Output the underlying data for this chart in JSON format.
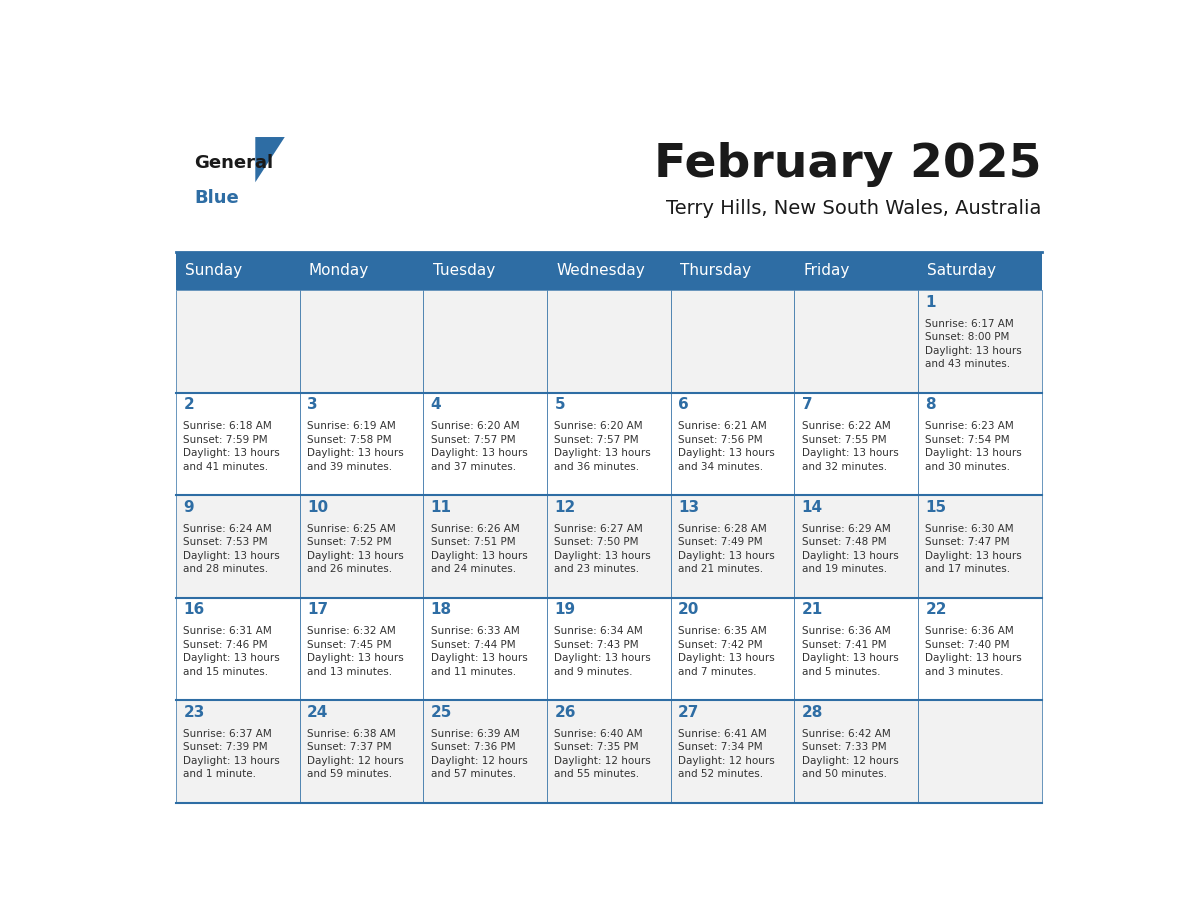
{
  "title": "February 2025",
  "subtitle": "Terry Hills, New South Wales, Australia",
  "header_bg": "#2E6DA4",
  "header_text": "#FFFFFF",
  "cell_bg_light": "#F2F2F2",
  "cell_bg_white": "#FFFFFF",
  "border_color": "#2E6DA4",
  "day_headers": [
    "Sunday",
    "Monday",
    "Tuesday",
    "Wednesday",
    "Thursday",
    "Friday",
    "Saturday"
  ],
  "title_color": "#1a1a1a",
  "subtitle_color": "#1a1a1a",
  "day_number_color": "#2E6DA4",
  "cell_text_color": "#333333",
  "logo_general_color": "#1a1a1a",
  "logo_blue_color": "#2E6DA4",
  "weeks": [
    [
      {
        "day": null,
        "info": null
      },
      {
        "day": null,
        "info": null
      },
      {
        "day": null,
        "info": null
      },
      {
        "day": null,
        "info": null
      },
      {
        "day": null,
        "info": null
      },
      {
        "day": null,
        "info": null
      },
      {
        "day": 1,
        "info": "Sunrise: 6:17 AM\nSunset: 8:00 PM\nDaylight: 13 hours\nand 43 minutes."
      }
    ],
    [
      {
        "day": 2,
        "info": "Sunrise: 6:18 AM\nSunset: 7:59 PM\nDaylight: 13 hours\nand 41 minutes."
      },
      {
        "day": 3,
        "info": "Sunrise: 6:19 AM\nSunset: 7:58 PM\nDaylight: 13 hours\nand 39 minutes."
      },
      {
        "day": 4,
        "info": "Sunrise: 6:20 AM\nSunset: 7:57 PM\nDaylight: 13 hours\nand 37 minutes."
      },
      {
        "day": 5,
        "info": "Sunrise: 6:20 AM\nSunset: 7:57 PM\nDaylight: 13 hours\nand 36 minutes."
      },
      {
        "day": 6,
        "info": "Sunrise: 6:21 AM\nSunset: 7:56 PM\nDaylight: 13 hours\nand 34 minutes."
      },
      {
        "day": 7,
        "info": "Sunrise: 6:22 AM\nSunset: 7:55 PM\nDaylight: 13 hours\nand 32 minutes."
      },
      {
        "day": 8,
        "info": "Sunrise: 6:23 AM\nSunset: 7:54 PM\nDaylight: 13 hours\nand 30 minutes."
      }
    ],
    [
      {
        "day": 9,
        "info": "Sunrise: 6:24 AM\nSunset: 7:53 PM\nDaylight: 13 hours\nand 28 minutes."
      },
      {
        "day": 10,
        "info": "Sunrise: 6:25 AM\nSunset: 7:52 PM\nDaylight: 13 hours\nand 26 minutes."
      },
      {
        "day": 11,
        "info": "Sunrise: 6:26 AM\nSunset: 7:51 PM\nDaylight: 13 hours\nand 24 minutes."
      },
      {
        "day": 12,
        "info": "Sunrise: 6:27 AM\nSunset: 7:50 PM\nDaylight: 13 hours\nand 23 minutes."
      },
      {
        "day": 13,
        "info": "Sunrise: 6:28 AM\nSunset: 7:49 PM\nDaylight: 13 hours\nand 21 minutes."
      },
      {
        "day": 14,
        "info": "Sunrise: 6:29 AM\nSunset: 7:48 PM\nDaylight: 13 hours\nand 19 minutes."
      },
      {
        "day": 15,
        "info": "Sunrise: 6:30 AM\nSunset: 7:47 PM\nDaylight: 13 hours\nand 17 minutes."
      }
    ],
    [
      {
        "day": 16,
        "info": "Sunrise: 6:31 AM\nSunset: 7:46 PM\nDaylight: 13 hours\nand 15 minutes."
      },
      {
        "day": 17,
        "info": "Sunrise: 6:32 AM\nSunset: 7:45 PM\nDaylight: 13 hours\nand 13 minutes."
      },
      {
        "day": 18,
        "info": "Sunrise: 6:33 AM\nSunset: 7:44 PM\nDaylight: 13 hours\nand 11 minutes."
      },
      {
        "day": 19,
        "info": "Sunrise: 6:34 AM\nSunset: 7:43 PM\nDaylight: 13 hours\nand 9 minutes."
      },
      {
        "day": 20,
        "info": "Sunrise: 6:35 AM\nSunset: 7:42 PM\nDaylight: 13 hours\nand 7 minutes."
      },
      {
        "day": 21,
        "info": "Sunrise: 6:36 AM\nSunset: 7:41 PM\nDaylight: 13 hours\nand 5 minutes."
      },
      {
        "day": 22,
        "info": "Sunrise: 6:36 AM\nSunset: 7:40 PM\nDaylight: 13 hours\nand 3 minutes."
      }
    ],
    [
      {
        "day": 23,
        "info": "Sunrise: 6:37 AM\nSunset: 7:39 PM\nDaylight: 13 hours\nand 1 minute."
      },
      {
        "day": 24,
        "info": "Sunrise: 6:38 AM\nSunset: 7:37 PM\nDaylight: 12 hours\nand 59 minutes."
      },
      {
        "day": 25,
        "info": "Sunrise: 6:39 AM\nSunset: 7:36 PM\nDaylight: 12 hours\nand 57 minutes."
      },
      {
        "day": 26,
        "info": "Sunrise: 6:40 AM\nSunset: 7:35 PM\nDaylight: 12 hours\nand 55 minutes."
      },
      {
        "day": 27,
        "info": "Sunrise: 6:41 AM\nSunset: 7:34 PM\nDaylight: 12 hours\nand 52 minutes."
      },
      {
        "day": 28,
        "info": "Sunrise: 6:42 AM\nSunset: 7:33 PM\nDaylight: 12 hours\nand 50 minutes."
      },
      {
        "day": null,
        "info": null
      }
    ]
  ]
}
